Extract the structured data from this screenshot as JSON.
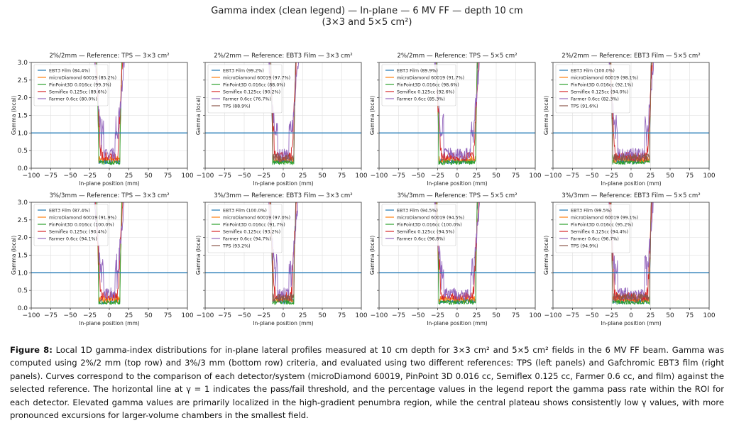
{
  "suptitle": {
    "line1": "Gamma index (clean legend) — In-plane — 6 MV FF — depth 10 cm",
    "line2": "(3×3 and 5×5 cm²)"
  },
  "shared": {
    "xlabel": "In-plane position (mm)",
    "ylabel": "Gamma (local)",
    "xlim": [
      -100,
      100
    ],
    "ylim": [
      0,
      3
    ],
    "xticks": [
      -100,
      -75,
      -50,
      -25,
      0,
      25,
      50,
      75,
      100
    ],
    "yticks": [
      "0.0",
      "0.5",
      "1.0",
      "1.5",
      "2.0",
      "2.5",
      "3.0"
    ],
    "threshold": 1.0,
    "grid": true,
    "legend_position": "upper-left"
  },
  "colors": {
    "EBT3 Film": "#1f77b4",
    "microDiamond 60019": "#ff7f0e",
    "PinPoint3D 0.016cc": "#2ca02c",
    "Semiflex 0.125cc": "#d62728",
    "Farmer 0.6cc": "#9467bd",
    "TPS": "#8c564b",
    "threshold": "#1f77b4"
  },
  "chart_data": [
    {
      "type": "line",
      "title": "2%/2mm — Reference: TPS — 3×3 cm²",
      "field": 3,
      "legend": [
        "EBT3 Film (84.4%)",
        "microDiamond 60019 (85.2%)",
        "PinPoint3D 0.016cc (99.3%)",
        "Semiflex 0.125cc (89.6%)",
        "Farmer 0.6cc (80.0%)"
      ],
      "series": [
        {
          "name": "EBT3 Film",
          "pass_rate": 84.4
        },
        {
          "name": "microDiamond 60019",
          "pass_rate": 85.2
        },
        {
          "name": "PinPoint3D 0.016cc",
          "pass_rate": 99.3
        },
        {
          "name": "Semiflex 0.125cc",
          "pass_rate": 89.6
        },
        {
          "name": "Farmer 0.6cc",
          "pass_rate": 80.0
        }
      ]
    },
    {
      "type": "line",
      "title": "2%/2mm — Reference: EBT3 Film — 3×3 cm²",
      "field": 3,
      "legend": [
        "EBT3 Film (99.2%)",
        "microDiamond 60019 (97.7%)",
        "PinPoint3D 0.016cc (88.0%)",
        "Semiflex 0.125cc (90.2%)",
        "Farmer 0.6cc (76.7%)",
        "TPS (88.9%)"
      ],
      "series": [
        {
          "name": "EBT3 Film",
          "pass_rate": 99.2
        },
        {
          "name": "microDiamond 60019",
          "pass_rate": 97.7
        },
        {
          "name": "PinPoint3D 0.016cc",
          "pass_rate": 88.0
        },
        {
          "name": "Semiflex 0.125cc",
          "pass_rate": 90.2
        },
        {
          "name": "Farmer 0.6cc",
          "pass_rate": 76.7
        },
        {
          "name": "TPS",
          "pass_rate": 88.9
        }
      ]
    },
    {
      "type": "line",
      "title": "2%/2mm — Reference: TPS — 5×5 cm²",
      "field": 5,
      "legend": [
        "EBT3 Film (89.9%)",
        "microDiamond 60019 (91.7%)",
        "PinPoint3D 0.016cc (98.6%)",
        "Semiflex 0.125cc (92.6%)",
        "Farmer 0.6cc (85.3%)"
      ],
      "series": [
        {
          "name": "EBT3 Film",
          "pass_rate": 89.9
        },
        {
          "name": "microDiamond 60019",
          "pass_rate": 91.7
        },
        {
          "name": "PinPoint3D 0.016cc",
          "pass_rate": 98.6
        },
        {
          "name": "Semiflex 0.125cc",
          "pass_rate": 92.6
        },
        {
          "name": "Farmer 0.6cc",
          "pass_rate": 85.3
        }
      ]
    },
    {
      "type": "line",
      "title": "2%/2mm — Reference: EBT3 Film — 5×5 cm²",
      "field": 5,
      "legend": [
        "EBT3 Film (100.0%)",
        "microDiamond 60019 (98.1%)",
        "PinPoint3D 0.016cc (92.1%)",
        "Semiflex 0.125cc (94.0%)",
        "Farmer 0.6cc (82.3%)",
        "TPS (91.6%)"
      ],
      "series": [
        {
          "name": "EBT3 Film",
          "pass_rate": 100.0
        },
        {
          "name": "microDiamond 60019",
          "pass_rate": 98.1
        },
        {
          "name": "PinPoint3D 0.016cc",
          "pass_rate": 92.1
        },
        {
          "name": "Semiflex 0.125cc",
          "pass_rate": 94.0
        },
        {
          "name": "Farmer 0.6cc",
          "pass_rate": 82.3
        },
        {
          "name": "TPS",
          "pass_rate": 91.6
        }
      ]
    },
    {
      "type": "line",
      "title": "3%/3mm — Reference: TPS — 3×3 cm²",
      "field": 3,
      "legend": [
        "EBT3 Film (87.4%)",
        "microDiamond 60019 (91.9%)",
        "PinPoint3D 0.016cc (100.0%)",
        "Semiflex 0.125cc (90.4%)",
        "Farmer 0.6cc (94.1%)"
      ],
      "series": [
        {
          "name": "EBT3 Film",
          "pass_rate": 87.4
        },
        {
          "name": "microDiamond 60019",
          "pass_rate": 91.9
        },
        {
          "name": "PinPoint3D 0.016cc",
          "pass_rate": 100.0
        },
        {
          "name": "Semiflex 0.125cc",
          "pass_rate": 90.4
        },
        {
          "name": "Farmer 0.6cc",
          "pass_rate": 94.1
        }
      ]
    },
    {
      "type": "line",
      "title": "3%/3mm — Reference: EBT3 Film — 3×3 cm²",
      "field": 3,
      "legend": [
        "EBT3 Film (100.0%)",
        "microDiamond 60019 (97.0%)",
        "PinPoint3D 0.016cc (91.7%)",
        "Semiflex 0.125cc (93.2%)",
        "Farmer 0.6cc (94.7%)",
        "TPS (93.2%)"
      ],
      "series": [
        {
          "name": "EBT3 Film",
          "pass_rate": 100.0
        },
        {
          "name": "microDiamond 60019",
          "pass_rate": 97.0
        },
        {
          "name": "PinPoint3D 0.016cc",
          "pass_rate": 91.7
        },
        {
          "name": "Semiflex 0.125cc",
          "pass_rate": 93.2
        },
        {
          "name": "Farmer 0.6cc",
          "pass_rate": 94.7
        },
        {
          "name": "TPS",
          "pass_rate": 93.2
        }
      ]
    },
    {
      "type": "line",
      "title": "3%/3mm — Reference: TPS — 5×5 cm²",
      "field": 5,
      "legend": [
        "EBT3 Film (94.5%)",
        "microDiamond 60019 (94.5%)",
        "PinPoint3D 0.016cc (100.0%)",
        "Semiflex 0.125cc (94.5%)",
        "Farmer 0.6cc (96.8%)"
      ],
      "series": [
        {
          "name": "EBT3 Film",
          "pass_rate": 94.5
        },
        {
          "name": "microDiamond 60019",
          "pass_rate": 94.5
        },
        {
          "name": "PinPoint3D 0.016cc",
          "pass_rate": 100.0
        },
        {
          "name": "Semiflex 0.125cc",
          "pass_rate": 94.5
        },
        {
          "name": "Farmer 0.6cc",
          "pass_rate": 96.8
        }
      ]
    },
    {
      "type": "line",
      "title": "3%/3mm — Reference: EBT3 Film — 5×5 cm²",
      "field": 5,
      "legend": [
        "EBT3 Film (99.5%)",
        "microDiamond 60019 (99.1%)",
        "PinPoint3D 0.016cc (95.2%)",
        "Semiflex 0.125cc (94.4%)",
        "Farmer 0.6cc (96.7%)",
        "TPS (94.9%)"
      ],
      "series": [
        {
          "name": "EBT3 Film",
          "pass_rate": 99.5
        },
        {
          "name": "microDiamond 60019",
          "pass_rate": 99.1
        },
        {
          "name": "PinPoint3D 0.016cc",
          "pass_rate": 95.2
        },
        {
          "name": "Semiflex 0.125cc",
          "pass_rate": 94.4
        },
        {
          "name": "Farmer 0.6cc",
          "pass_rate": 96.7
        },
        {
          "name": "TPS",
          "pass_rate": 94.9
        }
      ]
    }
  ],
  "caption": {
    "label": "Figure 8:",
    "text": " Local 1D gamma-index distributions for in-plane lateral profiles measured at 10 cm depth for 3×3 cm² and 5×5 cm² fields in the 6 MV FF beam. Gamma was computed using 2%/2 mm (top row) and 3%/3 mm (bottom row) criteria, and evaluated using two different references: TPS (left panels) and Gafchromic EBT3 film (right panels). Curves correspond to the comparison of each detector/system (microDiamond 60019, PinPoint 3D 0.016 cc, Semiflex 0.125 cc, Farmer 0.6 cc, and film) against the selected reference. The horizontal line at γ = 1 indicates the pass/fail threshold, and the percentage values in the legend report the gamma pass rate within the ROI for each detector. Elevated gamma values are primarily localized in the high-gradient penumbra region, while the central plateau shows consistently low γ values, with more pronounced excursions for larger-volume chambers in the smallest field."
  }
}
